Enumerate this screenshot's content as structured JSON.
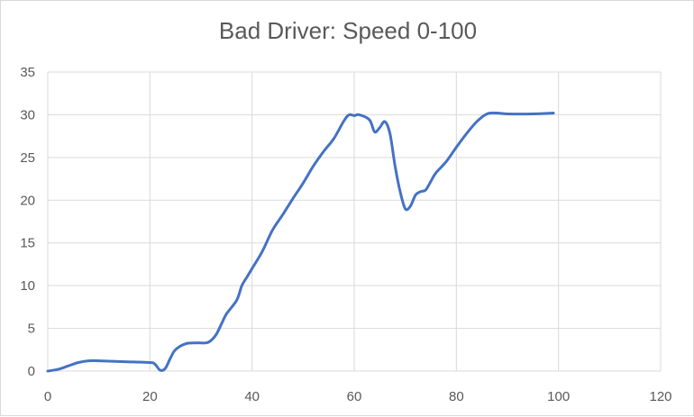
{
  "chart_data": {
    "type": "line",
    "title": "Bad Driver: Speed 0-100",
    "xlabel": "",
    "ylabel": "",
    "xlim": [
      0,
      120
    ],
    "ylim": [
      0,
      35
    ],
    "x_ticks": [
      0,
      20,
      40,
      60,
      80,
      100,
      120
    ],
    "y_ticks": [
      0,
      5,
      10,
      15,
      20,
      25,
      30,
      35
    ],
    "grid": true,
    "legend": "none",
    "series_color": "#4472C4",
    "series": [
      {
        "name": "",
        "x": [
          0,
          2,
          4,
          6,
          8,
          10,
          15,
          20,
          21,
          22,
          23,
          24,
          25,
          27,
          29,
          31,
          32,
          33,
          34,
          35,
          37,
          38,
          39,
          40,
          42,
          44,
          46,
          48,
          50,
          52,
          54,
          56,
          58,
          59,
          60,
          61,
          63,
          64,
          65,
          66,
          67,
          68,
          69,
          70,
          71,
          72,
          73,
          74,
          75,
          76,
          78,
          80,
          82,
          84,
          86,
          88,
          90,
          95,
          99
        ],
        "y": [
          0,
          0.2,
          0.6,
          1.0,
          1.2,
          1.2,
          1.1,
          1.0,
          0.8,
          0.1,
          0.3,
          1.5,
          2.5,
          3.2,
          3.3,
          3.3,
          3.6,
          4.3,
          5.5,
          6.7,
          8.3,
          10.0,
          11.0,
          12.0,
          14.0,
          16.5,
          18.3,
          20.2,
          22.0,
          24.0,
          25.7,
          27.2,
          29.3,
          30.0,
          29.9,
          30.0,
          29.4,
          28.0,
          28.5,
          29.2,
          27.8,
          24.0,
          21.0,
          19.0,
          19.3,
          20.6,
          21.0,
          21.2,
          22.2,
          23.2,
          24.5,
          26.2,
          27.8,
          29.2,
          30.1,
          30.2,
          30.1,
          30.1,
          30.2
        ]
      }
    ]
  }
}
